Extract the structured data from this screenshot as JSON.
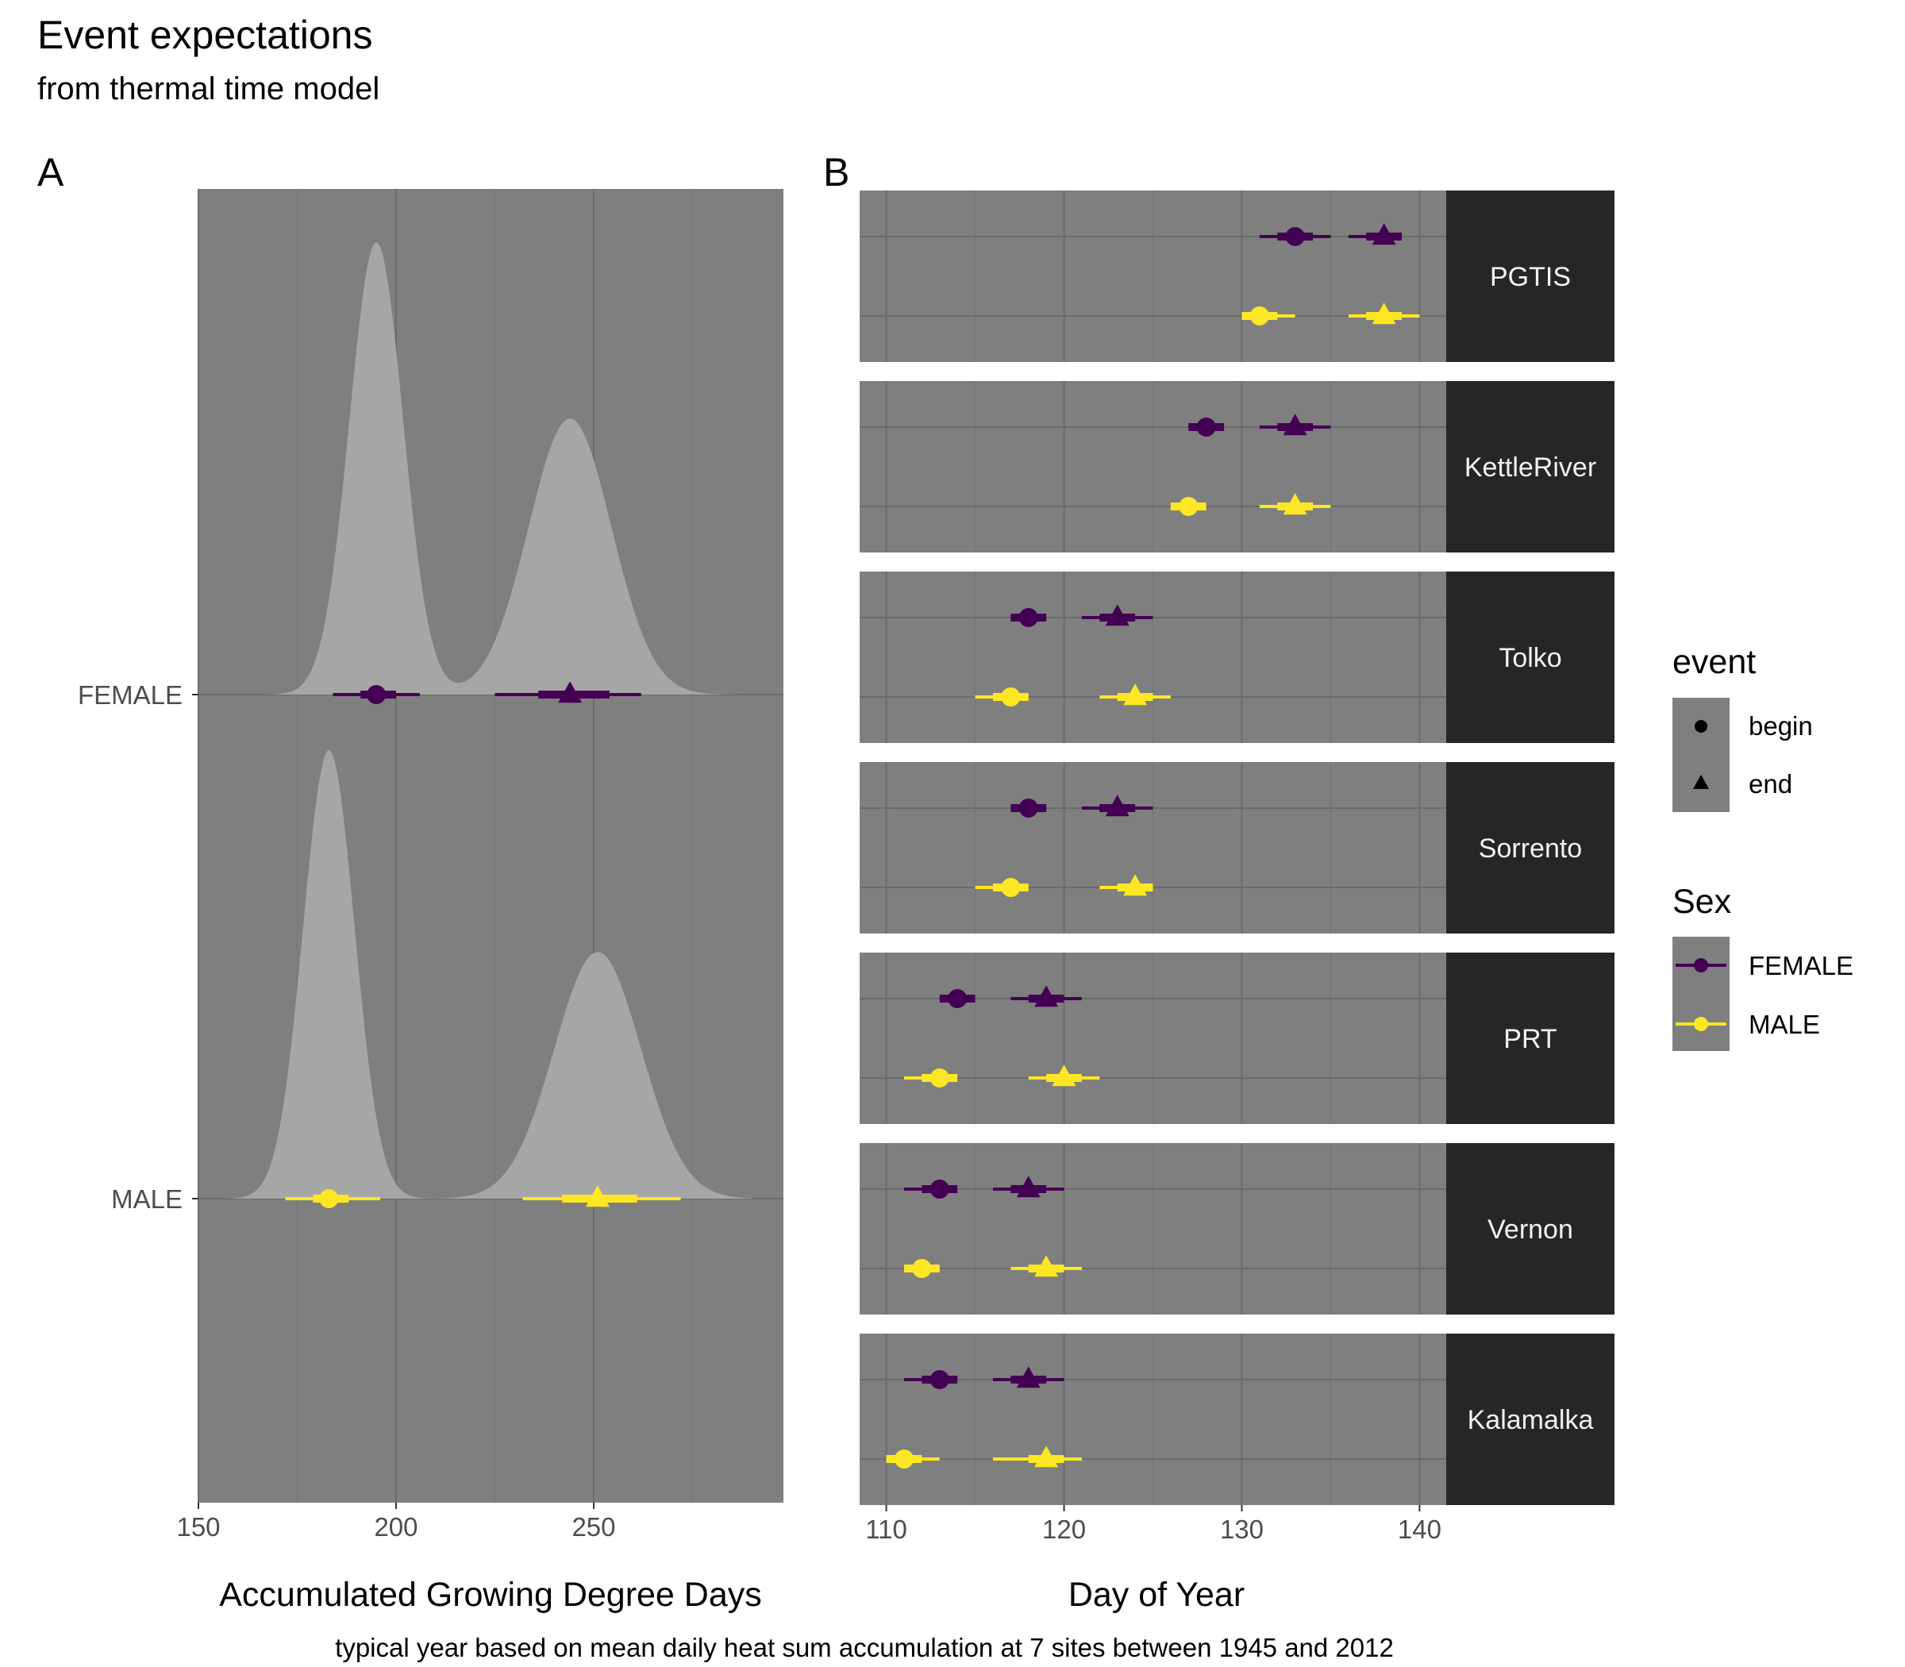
{
  "title": "Event expectations",
  "subtitle": "from thermal time model",
  "caption": "typical year based on mean daily heat sum accumulation at 7 sites between 1945 and 2012",
  "colors": {
    "panel_bg": "#7f7f7f",
    "grid_major": "#6b6b6b",
    "grid_minor": "#757575",
    "density_fill": "#a6a6a6",
    "strip_bg": "#262626",
    "female": "#440154",
    "male": "#fde725"
  },
  "chart_data": [
    {
      "tag": "A",
      "type": "density",
      "xlabel": "Accumulated Growing Degree Days",
      "ylabel": "",
      "xlim": [
        150,
        298
      ],
      "xticks": [
        150,
        200,
        250
      ],
      "categories": [
        "FEMALE",
        "MALE"
      ],
      "series": [
        {
          "name": "FEMALE",
          "densities": [
            {
              "event": "begin",
              "mean": 195,
              "sd": 6.8,
              "height": 1.0
            },
            {
              "event": "end",
              "mean": 244,
              "sd": 10.5,
              "height": 0.61
            }
          ],
          "points": [
            {
              "event": "begin",
              "x": 195,
              "inner": [
                191,
                200
              ],
              "outer": [
                184,
                206
              ]
            },
            {
              "event": "end",
              "x": 244,
              "inner": [
                236,
                254
              ],
              "outer": [
                225,
                262
              ]
            }
          ]
        },
        {
          "name": "MALE",
          "densities": [
            {
              "event": "begin",
              "mean": 183,
              "sd": 6.5,
              "height": 1.0
            },
            {
              "event": "end",
              "mean": 251,
              "sd": 11.0,
              "height": 0.55
            }
          ],
          "points": [
            {
              "event": "begin",
              "x": 183,
              "inner": [
                179,
                188
              ],
              "outer": [
                172,
                196
              ]
            },
            {
              "event": "end",
              "x": 251,
              "inner": [
                242,
                261
              ],
              "outer": [
                232,
                272
              ]
            }
          ]
        }
      ]
    },
    {
      "tag": "B",
      "type": "pointrange",
      "xlabel": "Day of Year",
      "xlim": [
        108.5,
        141.5
      ],
      "xticks": [
        110,
        120,
        130,
        140
      ],
      "facets": [
        {
          "site": "PGTIS",
          "rows": [
            {
              "sex": "FEMALE",
              "begin": {
                "x": 133,
                "inner": [
                  132,
                  134
                ],
                "outer": [
                  131,
                  135
                ]
              },
              "end": {
                "x": 138,
                "inner": [
                  137,
                  139
                ],
                "outer": [
                  136,
                  139
                ]
              }
            },
            {
              "sex": "MALE",
              "begin": {
                "x": 131,
                "inner": [
                  130,
                  132
                ],
                "outer": [
                  130,
                  133
                ]
              },
              "end": {
                "x": 138,
                "inner": [
                  137,
                  139
                ],
                "outer": [
                  136,
                  140
                ]
              }
            }
          ]
        },
        {
          "site": "KettleRiver",
          "rows": [
            {
              "sex": "FEMALE",
              "begin": {
                "x": 128,
                "inner": [
                  127,
                  129
                ],
                "outer": [
                  127,
                  129
                ]
              },
              "end": {
                "x": 133,
                "inner": [
                  132,
                  134
                ],
                "outer": [
                  131,
                  135
                ]
              }
            },
            {
              "sex": "MALE",
              "begin": {
                "x": 127,
                "inner": [
                  126,
                  128
                ],
                "outer": [
                  126,
                  128
                ]
              },
              "end": {
                "x": 133,
                "inner": [
                  132,
                  134
                ],
                "outer": [
                  131,
                  135
                ]
              }
            }
          ]
        },
        {
          "site": "Tolko",
          "rows": [
            {
              "sex": "FEMALE",
              "begin": {
                "x": 118,
                "inner": [
                  117,
                  119
                ],
                "outer": [
                  117,
                  119
                ]
              },
              "end": {
                "x": 123,
                "inner": [
                  122,
                  124
                ],
                "outer": [
                  121,
                  125
                ]
              }
            },
            {
              "sex": "MALE",
              "begin": {
                "x": 117,
                "inner": [
                  116,
                  118
                ],
                "outer": [
                  115,
                  118
                ]
              },
              "end": {
                "x": 124,
                "inner": [
                  123,
                  125
                ],
                "outer": [
                  122,
                  126
                ]
              }
            }
          ]
        },
        {
          "site": "Sorrento",
          "rows": [
            {
              "sex": "FEMALE",
              "begin": {
                "x": 118,
                "inner": [
                  117,
                  119
                ],
                "outer": [
                  117,
                  119
                ]
              },
              "end": {
                "x": 123,
                "inner": [
                  122,
                  124
                ],
                "outer": [
                  121,
                  125
                ]
              }
            },
            {
              "sex": "MALE",
              "begin": {
                "x": 117,
                "inner": [
                  116,
                  118
                ],
                "outer": [
                  115,
                  118
                ]
              },
              "end": {
                "x": 124,
                "inner": [
                  123,
                  125
                ],
                "outer": [
                  122,
                  125
                ]
              }
            }
          ]
        },
        {
          "site": "PRT",
          "rows": [
            {
              "sex": "FEMALE",
              "begin": {
                "x": 114,
                "inner": [
                  113,
                  115
                ],
                "outer": [
                  113,
                  115
                ]
              },
              "end": {
                "x": 119,
                "inner": [
                  118,
                  120
                ],
                "outer": [
                  117,
                  121
                ]
              }
            },
            {
              "sex": "MALE",
              "begin": {
                "x": 113,
                "inner": [
                  112,
                  114
                ],
                "outer": [
                  111,
                  114
                ]
              },
              "end": {
                "x": 120,
                "inner": [
                  119,
                  121
                ],
                "outer": [
                  118,
                  122
                ]
              }
            }
          ]
        },
        {
          "site": "Vernon",
          "rows": [
            {
              "sex": "FEMALE",
              "begin": {
                "x": 113,
                "inner": [
                  112,
                  114
                ],
                "outer": [
                  111,
                  114
                ]
              },
              "end": {
                "x": 118,
                "inner": [
                  117,
                  119
                ],
                "outer": [
                  116,
                  120
                ]
              }
            },
            {
              "sex": "MALE",
              "begin": {
                "x": 112,
                "inner": [
                  111,
                  113
                ],
                "outer": [
                  111,
                  113
                ]
              },
              "end": {
                "x": 119,
                "inner": [
                  118,
                  120
                ],
                "outer": [
                  117,
                  121
                ]
              }
            }
          ]
        },
        {
          "site": "Kalamalka",
          "rows": [
            {
              "sex": "FEMALE",
              "begin": {
                "x": 113,
                "inner": [
                  112,
                  114
                ],
                "outer": [
                  111,
                  114
                ]
              },
              "end": {
                "x": 118,
                "inner": [
                  117,
                  119
                ],
                "outer": [
                  116,
                  120
                ]
              }
            },
            {
              "sex": "MALE",
              "begin": {
                "x": 111,
                "inner": [
                  110,
                  112
                ],
                "outer": [
                  110,
                  113
                ]
              },
              "end": {
                "x": 119,
                "inner": [
                  118,
                  120
                ],
                "outer": [
                  116,
                  121
                ]
              }
            }
          ]
        }
      ]
    }
  ],
  "legends": {
    "event": {
      "title": "event",
      "items": [
        {
          "label": "begin",
          "shape": "circle"
        },
        {
          "label": "end",
          "shape": "triangle"
        }
      ]
    },
    "sex": {
      "title": "Sex",
      "items": [
        {
          "label": "FEMALE",
          "color": "#440154"
        },
        {
          "label": "MALE",
          "color": "#fde725"
        }
      ]
    }
  }
}
